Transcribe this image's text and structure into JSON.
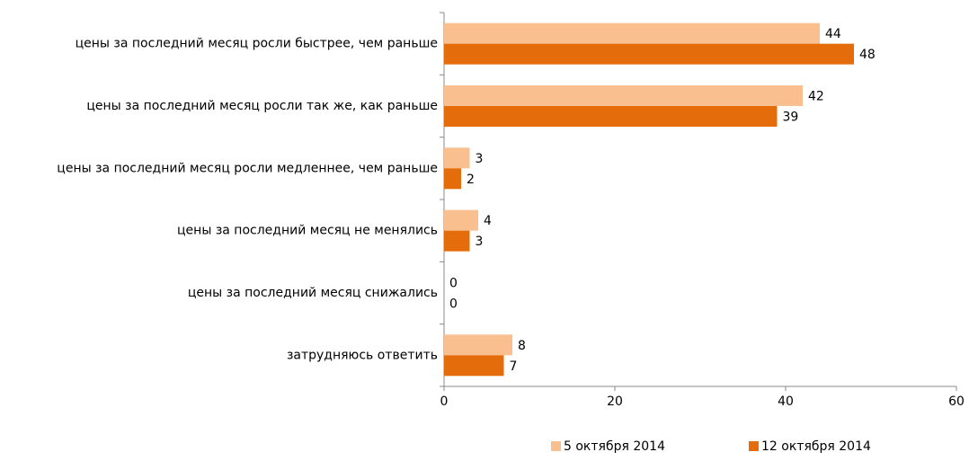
{
  "chart_data": {
    "type": "bar",
    "orientation": "horizontal",
    "categories": [
      "цены за последний месяц росли быстрее, чем раньше",
      "цены за последний месяц росли так же, как раньше",
      "цены за последний месяц росли медленнее, чем раньше",
      "цены за последний месяц не менялись",
      "цены за последний месяц снижались",
      "затрудняюсь ответить"
    ],
    "series": [
      {
        "name": "5 октября 2014",
        "color": "#f9bf8f",
        "values": [
          44,
          42,
          3,
          4,
          0,
          8
        ]
      },
      {
        "name": "12 октября 2014",
        "color": "#e46c0a",
        "values": [
          48,
          39,
          2,
          3,
          0,
          7
        ]
      }
    ],
    "xlim": [
      0,
      60
    ],
    "xticks": [
      0,
      20,
      40,
      60
    ],
    "grid": false,
    "legend": "bottom"
  }
}
